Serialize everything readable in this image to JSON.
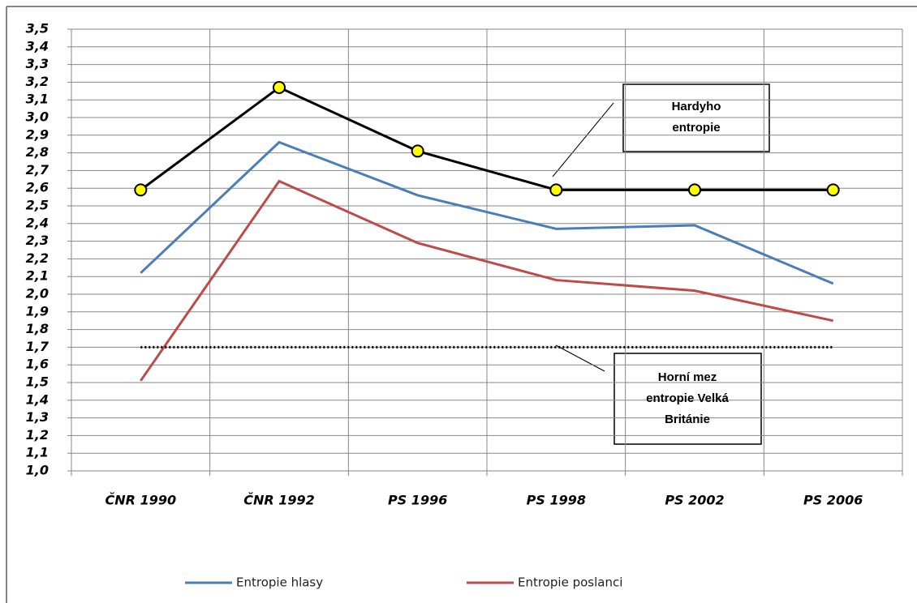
{
  "chart_data": {
    "type": "line",
    "categories": [
      "ČNR 1990",
      "ČNR 1992",
      "PS 1996",
      "PS 1998",
      "PS 2002",
      "PS 2006"
    ],
    "series": [
      {
        "name": "Entropie hlasy",
        "color": "#4a7ebb",
        "values": [
          2.12,
          2.86,
          2.56,
          2.37,
          2.39,
          2.06
        ]
      },
      {
        "name": "Entropie poslanci",
        "color": "#be4b48",
        "values": [
          1.51,
          2.64,
          2.29,
          2.08,
          2.02,
          1.85
        ]
      },
      {
        "color": "#000000",
        "marker_color": "#ffff00",
        "markers": true,
        "values": [
          2.59,
          3.17,
          2.81,
          2.59,
          2.59,
          2.59
        ]
      },
      {
        "color": "#000000",
        "dash": "dotted",
        "values": [
          1.7,
          1.7,
          1.7,
          1.7,
          1.7,
          1.7
        ]
      }
    ],
    "ylim": [
      1.0,
      3.5
    ],
    "yticks": [
      {
        "value": 1.0,
        "label": "1,0"
      },
      {
        "value": 1.1,
        "label": "1,1"
      },
      {
        "value": 1.2,
        "label": "1,2"
      },
      {
        "value": 1.3,
        "label": "1,3"
      },
      {
        "value": 1.4,
        "label": "1,4"
      },
      {
        "value": 1.5,
        "label": "1,5"
      },
      {
        "value": 1.6,
        "label": "1,6"
      },
      {
        "value": 1.7,
        "label": "1,7"
      },
      {
        "value": 1.8,
        "label": "1,8"
      },
      {
        "value": 1.9,
        "label": "1,9"
      },
      {
        "value": 2.0,
        "label": "2,0"
      },
      {
        "value": 2.1,
        "label": "2,1"
      },
      {
        "value": 2.2,
        "label": "2,2"
      },
      {
        "value": 2.3,
        "label": "2,3"
      },
      {
        "value": 2.4,
        "label": "2,4"
      },
      {
        "value": 2.5,
        "label": "2,5"
      },
      {
        "value": 2.6,
        "label": "2,6"
      },
      {
        "value": 2.7,
        "label": "2,7"
      },
      {
        "value": 2.8,
        "label": "2,8"
      },
      {
        "value": 2.9,
        "label": "2,9"
      },
      {
        "value": 3.0,
        "label": "3,0"
      },
      {
        "value": 3.1,
        "label": "3,1"
      },
      {
        "value": 3.2,
        "label": "3,2"
      },
      {
        "value": 3.3,
        "label": "3,3"
      },
      {
        "value": 3.4,
        "label": "3,4"
      },
      {
        "value": 3.5,
        "label": "3,5"
      }
    ],
    "grid": true,
    "annotations": [
      {
        "lines": [
          "Hardyho",
          "entropie"
        ]
      },
      {
        "lines": [
          "Horní mez",
          "entropie Velká",
          "Británie"
        ]
      }
    ]
  }
}
